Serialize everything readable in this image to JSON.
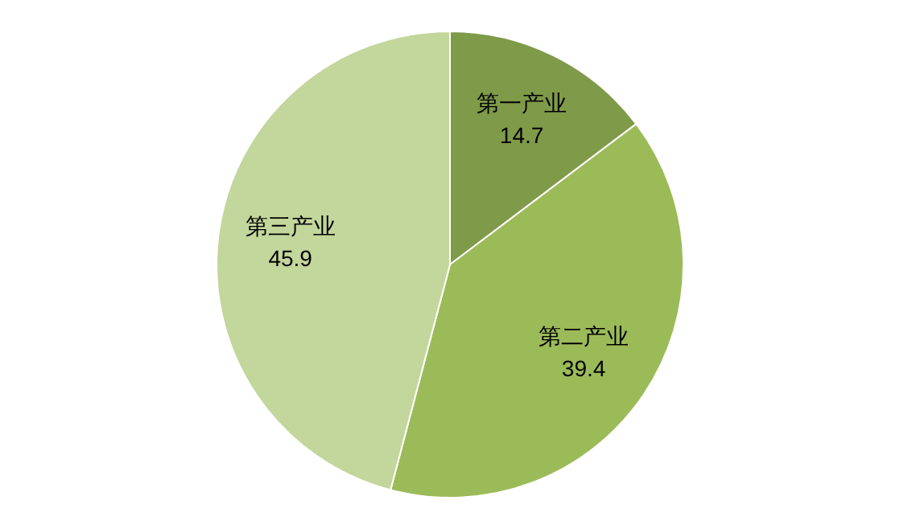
{
  "chart_data": {
    "type": "pie",
    "categories": [
      "第一产业",
      "第二产业",
      "第三产业"
    ],
    "values": [
      14.7,
      39.4,
      45.9
    ],
    "colors": [
      "#7f9a48",
      "#9bbb59",
      "#c3d69b"
    ],
    "data_labels": true,
    "legend": false
  }
}
